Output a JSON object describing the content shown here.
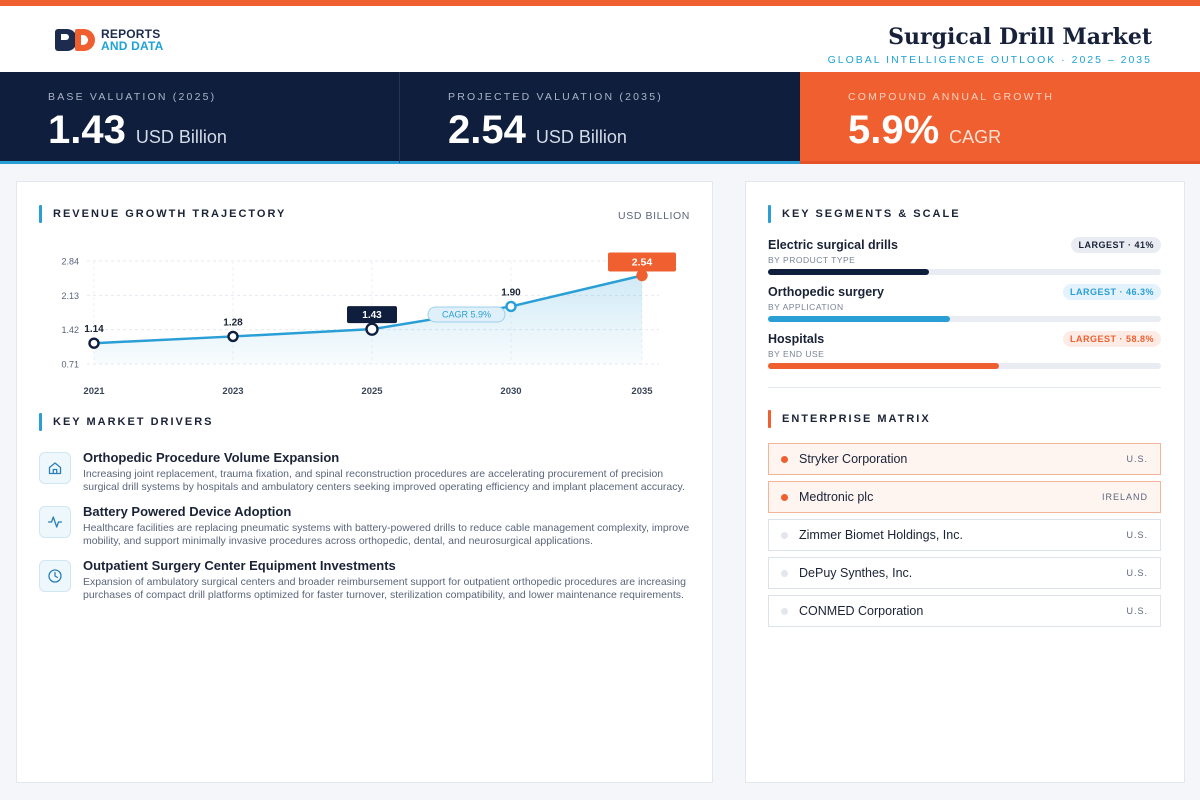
{
  "brand": {
    "line1": "REPORTS",
    "line2": "AND DATA"
  },
  "header": {
    "title": "Surgical Drill Market",
    "subtitle": "GLOBAL INTELLIGENCE OUTLOOK  ·  2025 – 2035"
  },
  "kpis": [
    {
      "label": "BASE VALUATION (2025)",
      "value": "1.43",
      "unit": "USD Billion"
    },
    {
      "label": "PROJECTED VALUATION (2035)",
      "value": "2.54",
      "unit": "USD Billion"
    },
    {
      "label": "COMPOUND ANNUAL GROWTH",
      "value": "5.9%",
      "unit": "CAGR"
    }
  ],
  "chart_section": {
    "title": "REVENUE GROWTH TRAJECTORY",
    "unit": "USD BILLION"
  },
  "chart_data": {
    "type": "area",
    "x": [
      "2021",
      "2023",
      "2025",
      "2030",
      "2035"
    ],
    "values": [
      1.14,
      1.28,
      1.43,
      1.9,
      2.54
    ],
    "labels": [
      "1.14",
      "1.28",
      "1.43",
      "1.90",
      "2.54"
    ],
    "yticks": [
      "0.71",
      "1.42",
      "2.13",
      "2.84"
    ],
    "ylim": [
      0.71,
      2.84
    ],
    "annotation": "CAGR 5.9%",
    "grid": true
  },
  "drivers_section": {
    "title": "KEY MARKET DRIVERS"
  },
  "drivers": [
    {
      "icon": "home-icon",
      "title": "Orthopedic Procedure Volume Expansion",
      "desc": "Increasing joint replacement, trauma fixation, and spinal reconstruction procedures are accelerating procurement of precision surgical drill systems by hospitals and ambulatory centers seeking improved operating efficiency and implant placement accuracy."
    },
    {
      "icon": "activity-icon",
      "title": "Battery Powered Device Adoption",
      "desc": "Healthcare facilities are replacing pneumatic systems with battery-powered drills to reduce cable management complexity, improve mobility, and support minimally invasive procedures across orthopedic, dental, and neurosurgical applications."
    },
    {
      "icon": "clock-icon",
      "title": "Outpatient Surgery Center Equipment Investments",
      "desc": "Expansion of ambulatory surgical centers and broader reimbursement support for outpatient orthopedic procedures are increasing purchases of compact drill platforms optimized for faster turnover, sterilization compatibility, and lower maintenance requirements."
    }
  ],
  "segments_section": {
    "title": "KEY SEGMENTS & SCALE"
  },
  "segments": [
    {
      "name": "Electric surgical drills",
      "by": "BY PRODUCT TYPE",
      "badge": "LARGEST · 41%",
      "share": 41,
      "color": "#0f1e3d"
    },
    {
      "name": "Orthopedic surgery",
      "by": "BY APPLICATION",
      "badge": "LARGEST · 46.3%",
      "share": 46.3,
      "color": "#2a9fd6"
    },
    {
      "name": "Hospitals",
      "by": "BY END USE",
      "badge": "LARGEST · 58.8%",
      "share": 58.8,
      "color": "#ef5f2f"
    }
  ],
  "matrix_section": {
    "title": "ENTERPRISE MATRIX"
  },
  "enterprises": [
    {
      "name": "Stryker Corporation",
      "country": "U.S."
    },
    {
      "name": "Medtronic plc",
      "country": "IRELAND"
    },
    {
      "name": "Zimmer Biomet Holdings, Inc.",
      "country": "U.S."
    },
    {
      "name": "DePuy Synthes, Inc.",
      "country": "U.S."
    },
    {
      "name": "CONMED Corporation",
      "country": "U.S."
    }
  ]
}
